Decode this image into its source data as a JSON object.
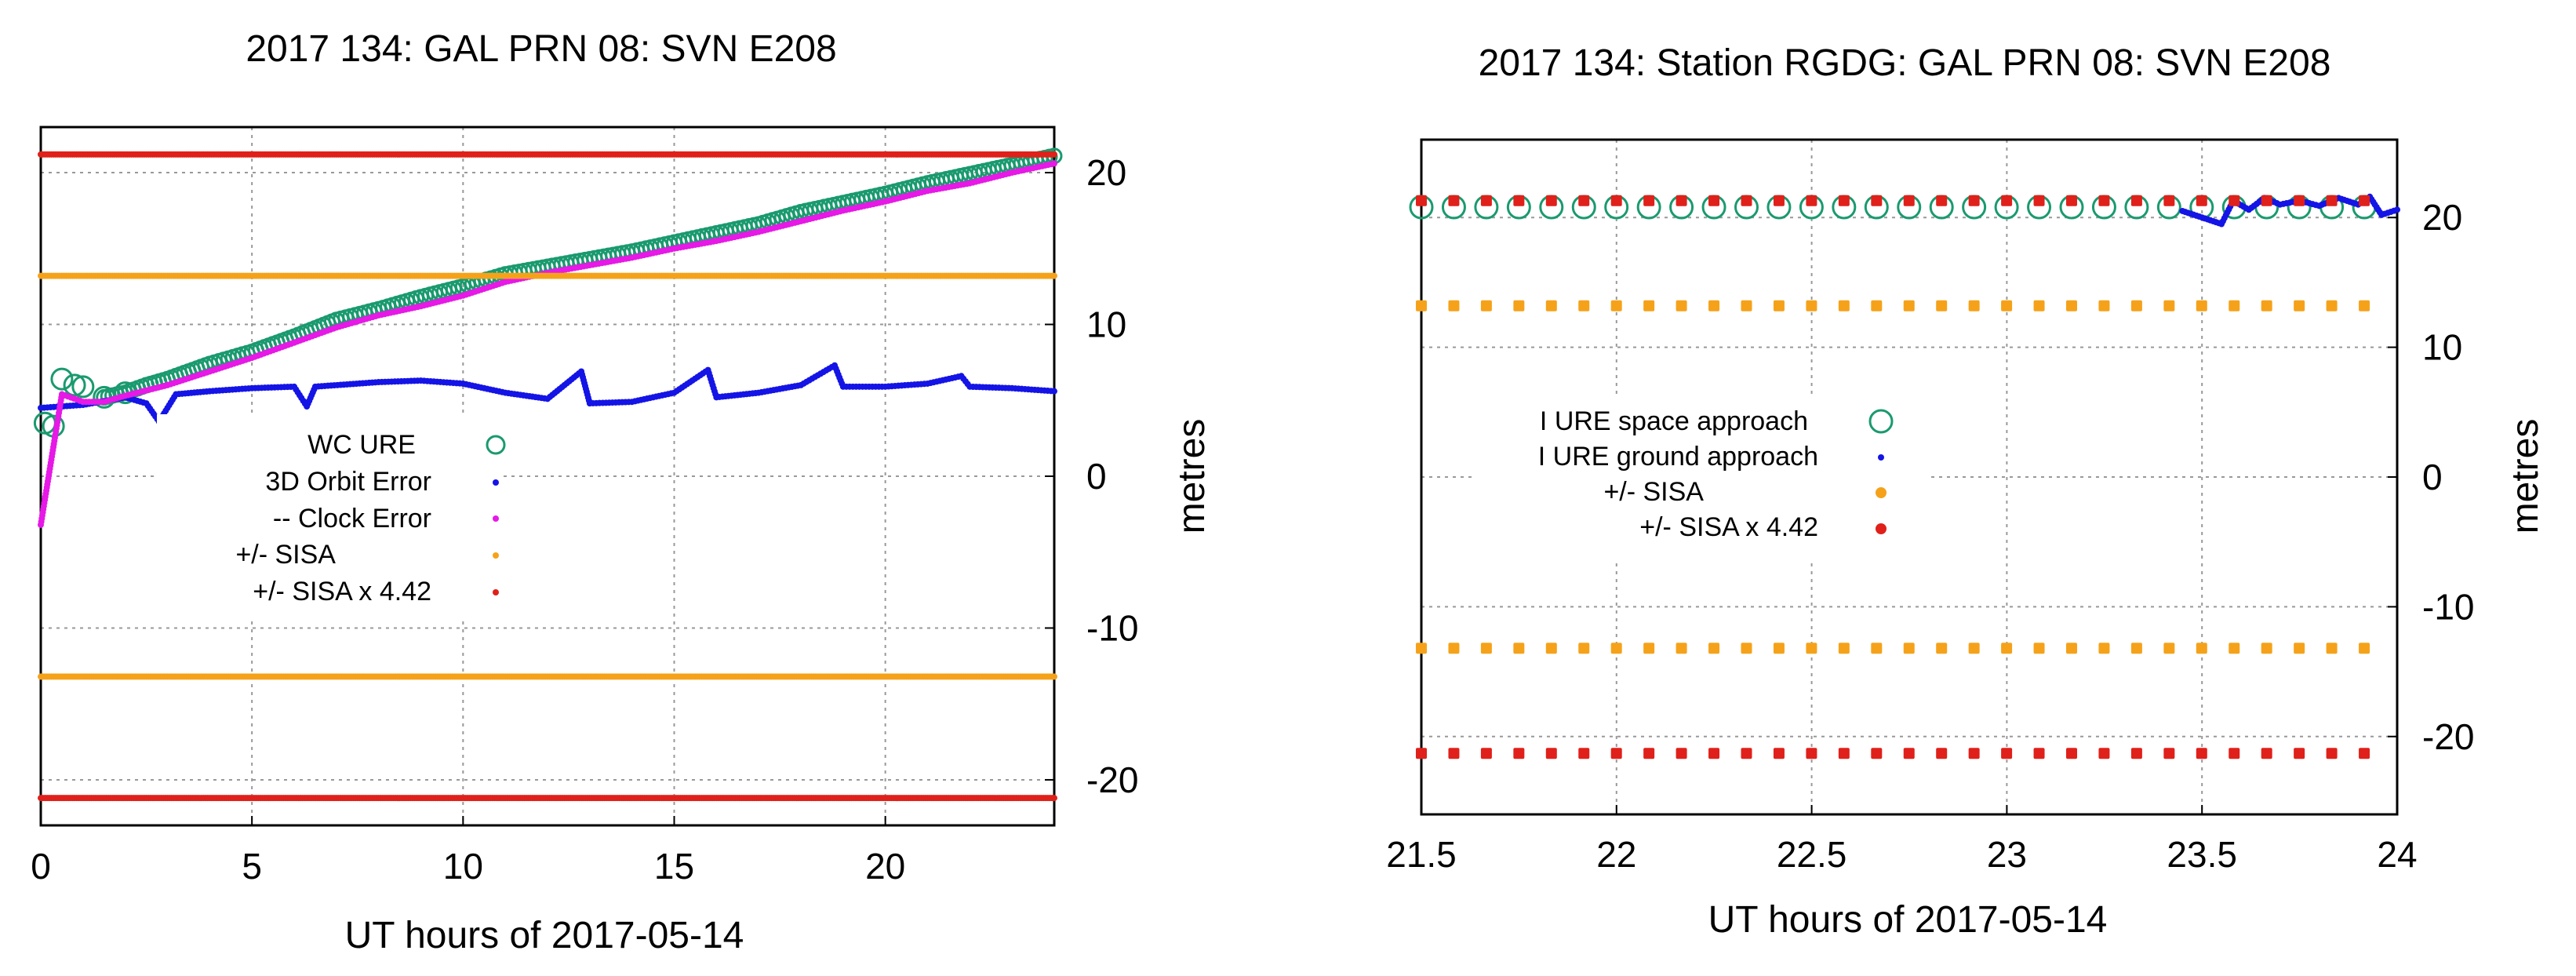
{
  "chart_data": [
    {
      "type": "scatter",
      "title": "2017 134: GAL PRN 08: SVN E208",
      "xlabel": "UT hours of 2017-05-14",
      "ylabel": "metres",
      "xlim": [
        0,
        24
      ],
      "ylim": [
        -23,
        23
      ],
      "x_ticks": [
        0,
        5,
        10,
        15,
        20
      ],
      "x_tick_labels": [
        "0",
        "5",
        "10",
        "15",
        "20"
      ],
      "y_ticks": [
        20,
        10,
        0,
        -10,
        -20
      ],
      "y_tick_labels": [
        "20",
        "10",
        "0",
        "-10",
        "-20"
      ],
      "grid": true,
      "legend_position": "center-left",
      "colors": {
        "wc_ure": "#1a9a6e",
        "orbit": "#1414e6",
        "clock": "#e619e6",
        "sisa": "#f5a21a",
        "sisa442": "#e0201a"
      },
      "series": [
        {
          "name": "WC URE",
          "marker": "open-circle",
          "points": [
            [
              0.1,
              3.5
            ],
            [
              0.3,
              3.3
            ],
            [
              0.5,
              6.4
            ],
            [
              0.8,
              6.0
            ],
            [
              1.0,
              5.9
            ],
            [
              1.5,
              5.2
            ],
            [
              2.0,
              5.5
            ],
            [
              2.5,
              6.0
            ],
            [
              3.0,
              6.4
            ],
            [
              4.0,
              7.4
            ],
            [
              5.0,
              8.2
            ],
            [
              6.0,
              9.2
            ],
            [
              7.0,
              10.3
            ],
            [
              8.0,
              11.0
            ],
            [
              9.0,
              11.8
            ],
            [
              10.0,
              12.5
            ],
            [
              11.0,
              13.3
            ],
            [
              12.0,
              13.8
            ],
            [
              13.0,
              14.3
            ],
            [
              14.0,
              14.8
            ],
            [
              15.0,
              15.4
            ],
            [
              16.0,
              16.0
            ],
            [
              17.0,
              16.6
            ],
            [
              18.0,
              17.4
            ],
            [
              19.0,
              18.0
            ],
            [
              20.0,
              18.6
            ],
            [
              21.0,
              19.3
            ],
            [
              22.0,
              19.9
            ],
            [
              23.0,
              20.5
            ],
            [
              24.0,
              21.1
            ]
          ]
        },
        {
          "name": "3D Orbit Error",
          "marker": "dot",
          "points": [
            [
              0.0,
              4.5
            ],
            [
              1.0,
              4.7
            ],
            [
              2.0,
              5.2
            ],
            [
              2.5,
              4.8
            ],
            [
              2.8,
              3.6
            ],
            [
              3.2,
              5.4
            ],
            [
              4.0,
              5.6
            ],
            [
              5.0,
              5.8
            ],
            [
              6.0,
              5.9
            ],
            [
              6.3,
              4.6
            ],
            [
              6.5,
              5.9
            ],
            [
              8.0,
              6.2
            ],
            [
              9.0,
              6.3
            ],
            [
              10.0,
              6.1
            ],
            [
              11.0,
              5.5
            ],
            [
              12.0,
              5.1
            ],
            [
              12.8,
              6.9
            ],
            [
              13.0,
              4.8
            ],
            [
              14.0,
              4.9
            ],
            [
              15.0,
              5.5
            ],
            [
              15.8,
              7.0
            ],
            [
              16.0,
              5.2
            ],
            [
              17.0,
              5.5
            ],
            [
              18.0,
              6.0
            ],
            [
              18.8,
              7.3
            ],
            [
              19.0,
              5.9
            ],
            [
              20.0,
              5.9
            ],
            [
              21.0,
              6.1
            ],
            [
              21.8,
              6.6
            ],
            [
              22.0,
              5.9
            ],
            [
              23.0,
              5.8
            ],
            [
              24.0,
              5.6
            ]
          ]
        },
        {
          "name": "-- Clock  Error",
          "marker": "dot",
          "points": [
            [
              0.0,
              -3.2
            ],
            [
              0.5,
              5.4
            ],
            [
              1.0,
              4.9
            ],
            [
              1.5,
              4.9
            ],
            [
              2.0,
              5.3
            ],
            [
              3.0,
              6.0
            ],
            [
              4.0,
              6.9
            ],
            [
              5.0,
              7.8
            ],
            [
              6.0,
              8.8
            ],
            [
              7.0,
              9.8
            ],
            [
              8.0,
              10.6
            ],
            [
              9.0,
              11.2
            ],
            [
              10.0,
              11.9
            ],
            [
              11.0,
              12.8
            ],
            [
              12.0,
              13.4
            ],
            [
              13.0,
              13.9
            ],
            [
              14.0,
              14.4
            ],
            [
              15.0,
              15.0
            ],
            [
              16.0,
              15.5
            ],
            [
              17.0,
              16.1
            ],
            [
              18.0,
              16.8
            ],
            [
              19.0,
              17.5
            ],
            [
              20.0,
              18.1
            ],
            [
              21.0,
              18.8
            ],
            [
              22.0,
              19.3
            ],
            [
              23.0,
              20.0
            ],
            [
              24.0,
              20.6
            ]
          ]
        },
        {
          "name": "+/- SISA",
          "marker": "dot",
          "points": [
            [
              0,
              13.2
            ],
            [
              24,
              13.2
            ],
            [
              0,
              -13.2
            ],
            [
              24,
              -13.2
            ]
          ]
        },
        {
          "name": "+/- SISA x 4.42",
          "marker": "dot",
          "points": [
            [
              0,
              21.2
            ],
            [
              24,
              21.2
            ],
            [
              0,
              -21.2
            ],
            [
              24,
              -21.2
            ]
          ]
        }
      ]
    },
    {
      "type": "scatter",
      "title": "2017 134: Station RGDG: GAL PRN 08: SVN E208",
      "xlabel": "UT hours of 2017-05-14",
      "ylabel": "metres",
      "xlim": [
        21.5,
        24
      ],
      "ylim": [
        -26,
        26
      ],
      "x_ticks": [
        21.5,
        22,
        22.5,
        23,
        23.5,
        24
      ],
      "x_tick_labels": [
        "21.5",
        "22",
        "22.5",
        "23",
        "23.5",
        "24"
      ],
      "y_ticks": [
        20,
        10,
        0,
        -10,
        -20
      ],
      "y_tick_labels": [
        "20",
        "10",
        "0",
        "-10",
        "-20"
      ],
      "grid": true,
      "legend_position": "center-left",
      "colors": {
        "space": "#1a9a6e",
        "ground": "#1414e6",
        "sisa": "#f5a21a",
        "sisa442": "#e0201a"
      },
      "series": [
        {
          "name": "I URE space approach",
          "marker": "open-circle",
          "x_start": 21.5,
          "x_step": 0.0833,
          "count": 30,
          "y": 20.8
        },
        {
          "name": "I URE ground approach",
          "marker": "dot",
          "points": [
            [
              23.45,
              20.5
            ],
            [
              23.5,
              20.0
            ],
            [
              23.55,
              19.5
            ],
            [
              23.58,
              21.3
            ],
            [
              23.62,
              20.6
            ],
            [
              23.66,
              21.5
            ],
            [
              23.7,
              21.0
            ],
            [
              23.75,
              21.3
            ],
            [
              23.8,
              20.9
            ],
            [
              23.85,
              21.5
            ],
            [
              23.9,
              21.0
            ],
            [
              23.93,
              21.6
            ],
            [
              23.96,
              20.2
            ],
            [
              24.0,
              20.6
            ]
          ]
        },
        {
          "name": "+/- SISA",
          "marker": "dot",
          "x_start": 21.5,
          "x_step": 0.0833,
          "count": 30,
          "y": [
            13.2,
            -13.2
          ]
        },
        {
          "name": "+/- SISA x 4.42",
          "marker": "dot",
          "x_start": 21.5,
          "x_step": 0.0833,
          "count": 30,
          "y": [
            21.3,
            -21.3
          ]
        }
      ]
    }
  ]
}
